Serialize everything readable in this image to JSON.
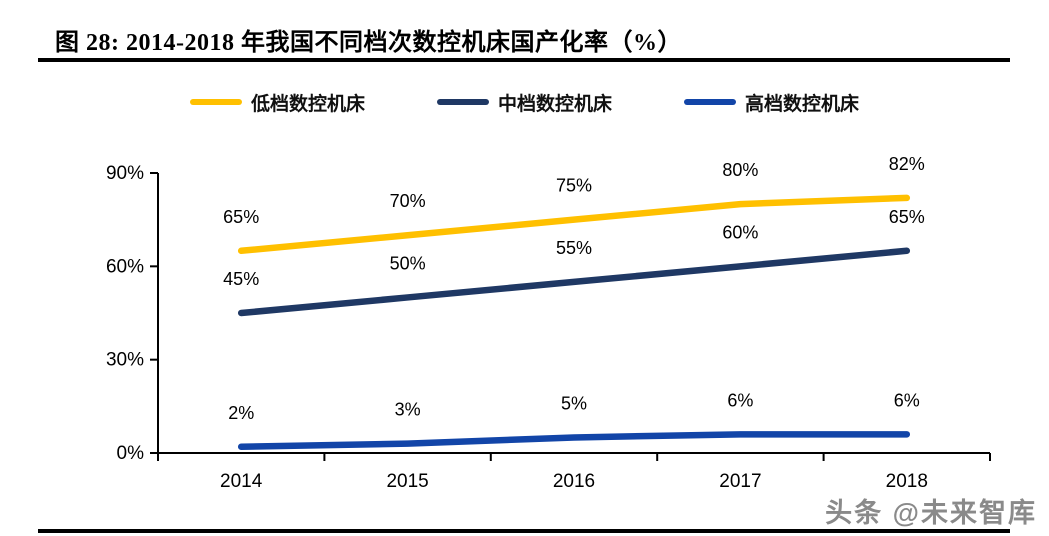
{
  "figure_title": "图 28:  2014-2018 年我国不同档次数控机床国产化率（%）",
  "watermark": "头条 @未来智库",
  "chart_data": {
    "type": "line",
    "title": "2014-2018 年我国不同档次数控机床国产化率（%）",
    "categories": [
      "2014",
      "2015",
      "2016",
      "2017",
      "2018"
    ],
    "series": [
      {
        "name": "低档数控机床",
        "color": "#FFC000",
        "values": [
          65,
          70,
          75,
          80,
          82
        ]
      },
      {
        "name": "中档数控机床",
        "color": "#1F3864",
        "values": [
          45,
          50,
          55,
          60,
          65
        ]
      },
      {
        "name": "高档数控机床",
        "color": "#1245A8",
        "values": [
          2,
          3,
          5,
          6,
          6
        ]
      }
    ],
    "ylim": [
      0,
      90
    ],
    "yticks": [
      0,
      30,
      60,
      90
    ],
    "ytick_suffix": "%",
    "data_label_suffix": "%",
    "legend_position": "top",
    "grid": false,
    "axis_color": "#000000"
  }
}
